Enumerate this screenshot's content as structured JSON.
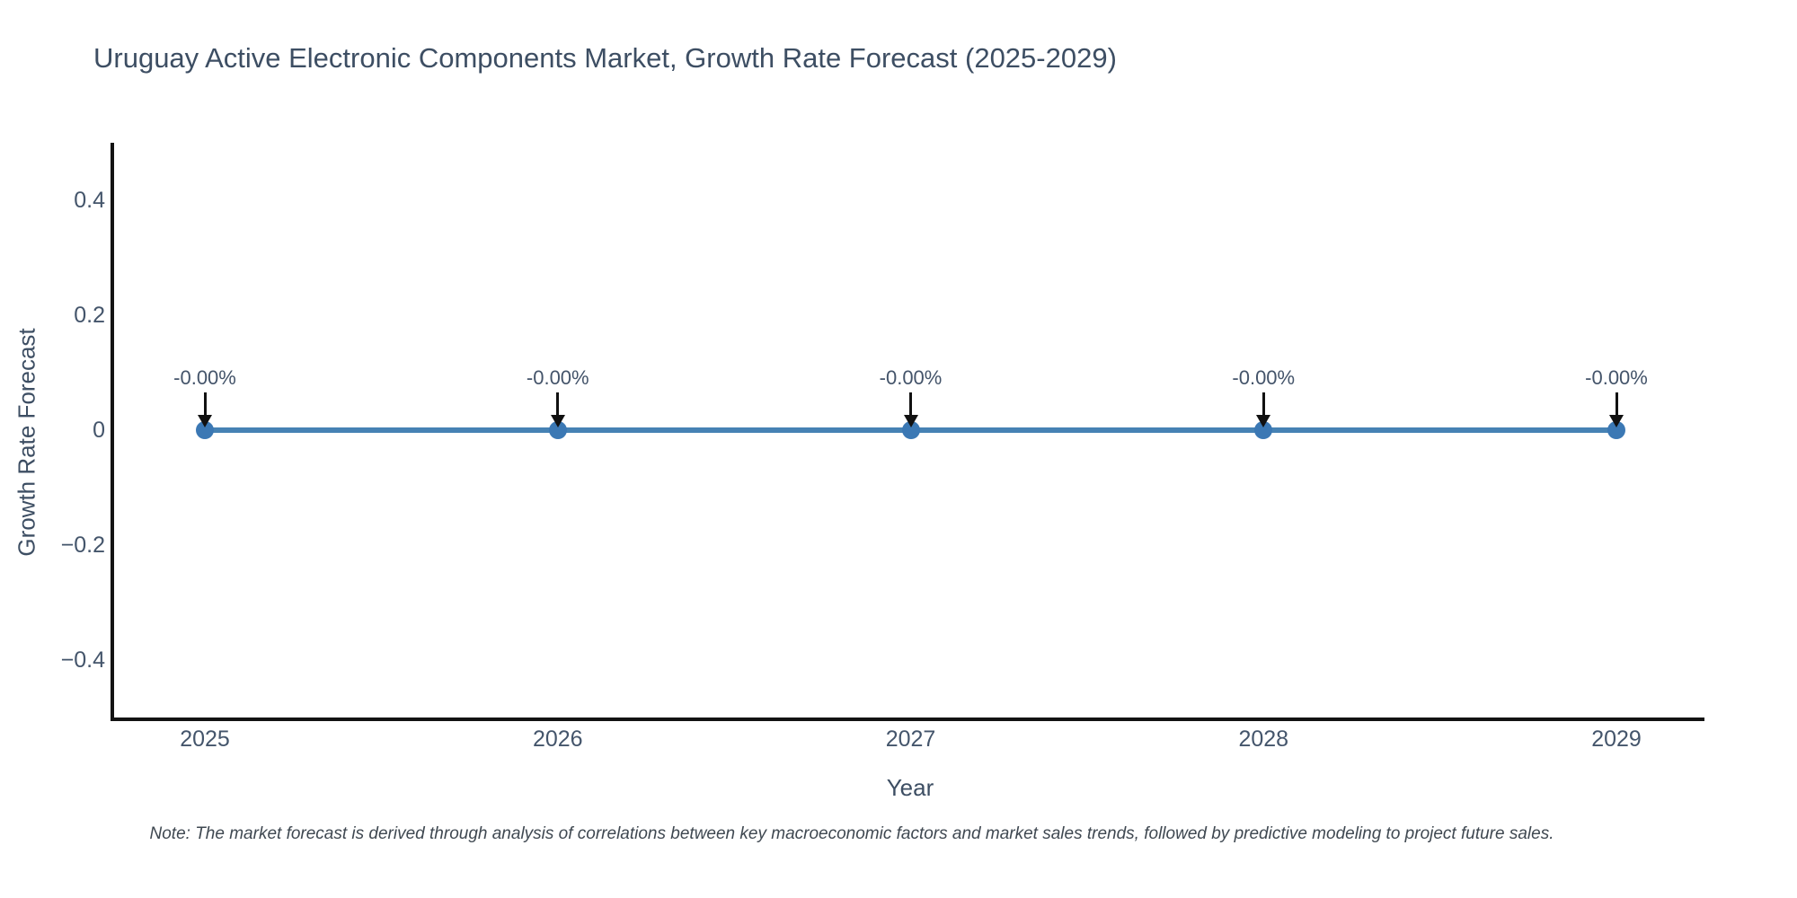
{
  "header": {
    "title": "Uruguay Active Electronic Components Market, Growth Rate Forecast (2025-2029)"
  },
  "chart_data": {
    "type": "line",
    "title": "Uruguay Active Electronic Components Market, Growth Rate Forecast (2025-2029)",
    "xlabel": "Year",
    "ylabel": "Growth Rate Forecast",
    "categories": [
      "2025",
      "2026",
      "2027",
      "2028",
      "2029"
    ],
    "series": [
      {
        "name": "Growth Rate Forecast",
        "values": [
          0,
          0,
          0,
          0,
          0
        ]
      }
    ],
    "point_labels": [
      "-0.00%",
      "-0.00%",
      "-0.00%",
      "-0.00%",
      "-0.00%"
    ],
    "ylim": [
      -0.5,
      0.5
    ],
    "yticks": [
      {
        "value": 0.4,
        "label": "0.4"
      },
      {
        "value": 0.2,
        "label": "0.2"
      },
      {
        "value": 0,
        "label": "0"
      },
      {
        "value": -0.2,
        "label": "−0.2"
      },
      {
        "value": -0.4,
        "label": "−0.4"
      }
    ],
    "grid": false,
    "legend": "none",
    "annotation_style": "down-arrow-to-point"
  },
  "colors": {
    "title_text": "#3d4e63",
    "tick_text": "#44556b",
    "axis_line": "#131313",
    "series_line": "#4682b4",
    "marker": "#3b78b4",
    "arrow": "#111111",
    "annotation_text": "#44546a",
    "note_text": "#3f4851",
    "background": "#ffffff"
  },
  "footnote": {
    "text": "Note: The market forecast is derived through analysis of correlations between key macroeconomic factors and market sales trends, followed by predictive modeling to project future sales."
  }
}
